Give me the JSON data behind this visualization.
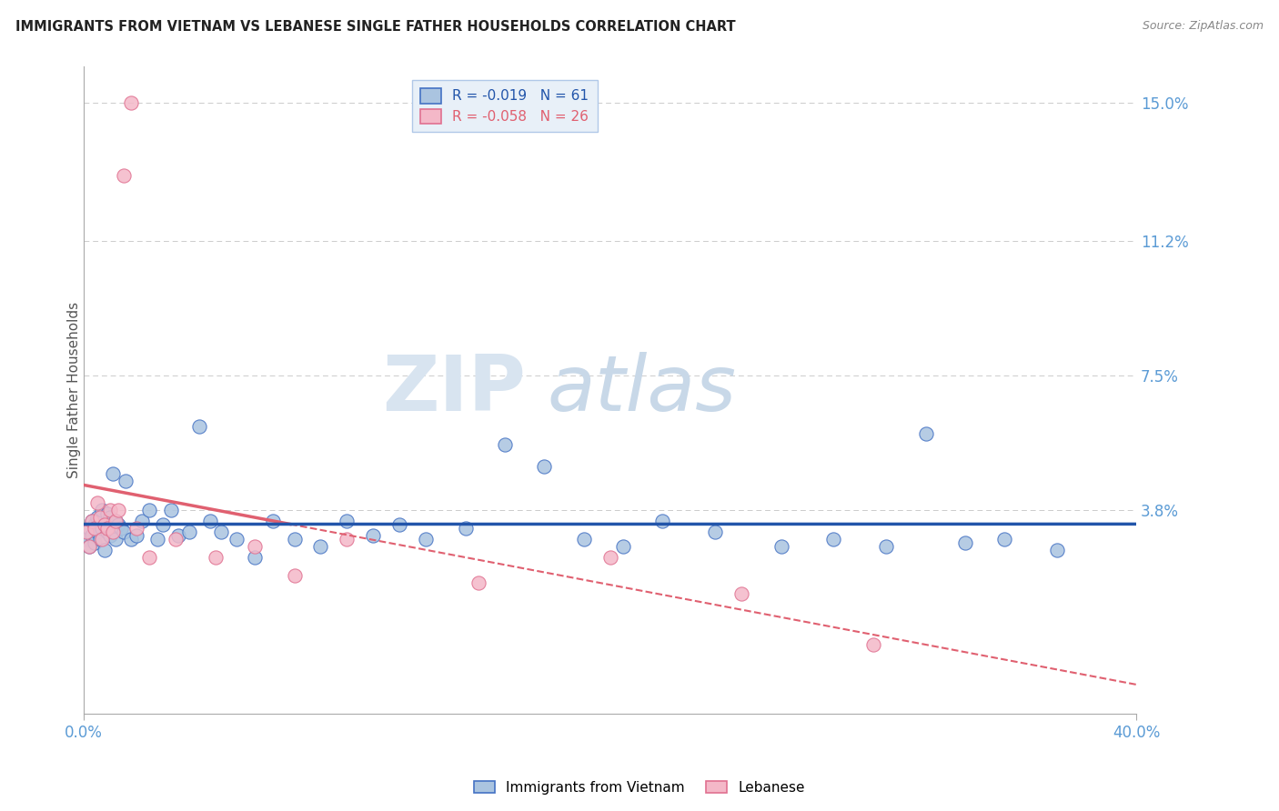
{
  "title": "IMMIGRANTS FROM VIETNAM VS LEBANESE SINGLE FATHER HOUSEHOLDS CORRELATION CHART",
  "source": "Source: ZipAtlas.com",
  "ylabel": "Single Father Households",
  "xlim": [
    0.0,
    0.4
  ],
  "ylim": [
    -0.018,
    0.16
  ],
  "ytick_vals": [
    0.038,
    0.075,
    0.112,
    0.15
  ],
  "ytick_labels": [
    "3.8%",
    "7.5%",
    "11.2%",
    "15.0%"
  ],
  "xtick_vals": [
    0.0,
    0.4
  ],
  "xtick_labels": [
    "0.0%",
    "40.0%"
  ],
  "background_color": "#ffffff",
  "grid_color": "#cccccc",
  "tick_color": "#5b9bd5",
  "series": [
    {
      "name": "Immigrants from Vietnam",
      "color": "#aac4e0",
      "edge_color": "#4472c4",
      "trend_color": "#2255aa",
      "trend_solid": true,
      "R": -0.019,
      "N": 61,
      "x": [
        0.001,
        0.002,
        0.002,
        0.003,
        0.003,
        0.004,
        0.004,
        0.005,
        0.005,
        0.006,
        0.006,
        0.007,
        0.007,
        0.008,
        0.008,
        0.009,
        0.009,
        0.01,
        0.01,
        0.011,
        0.012,
        0.012,
        0.013,
        0.014,
        0.015,
        0.016,
        0.018,
        0.02,
        0.022,
        0.025,
        0.028,
        0.03,
        0.033,
        0.036,
        0.04,
        0.044,
        0.048,
        0.052,
        0.058,
        0.065,
        0.072,
        0.08,
        0.09,
        0.1,
        0.11,
        0.12,
        0.13,
        0.145,
        0.16,
        0.175,
        0.19,
        0.205,
        0.22,
        0.24,
        0.265,
        0.285,
        0.305,
        0.32,
        0.335,
        0.35,
        0.37
      ],
      "y": [
        0.03,
        0.028,
        0.033,
        0.031,
        0.035,
        0.029,
        0.034,
        0.032,
        0.036,
        0.03,
        0.035,
        0.033,
        0.038,
        0.027,
        0.034,
        0.032,
        0.037,
        0.031,
        0.036,
        0.048,
        0.035,
        0.03,
        0.034,
        0.033,
        0.032,
        0.046,
        0.03,
        0.031,
        0.035,
        0.038,
        0.03,
        0.034,
        0.038,
        0.031,
        0.032,
        0.061,
        0.035,
        0.032,
        0.03,
        0.025,
        0.035,
        0.03,
        0.028,
        0.035,
        0.031,
        0.034,
        0.03,
        0.033,
        0.056,
        0.05,
        0.03,
        0.028,
        0.035,
        0.032,
        0.028,
        0.03,
        0.028,
        0.059,
        0.029,
        0.03,
        0.027
      ]
    },
    {
      "name": "Lebanese",
      "color": "#f4b8c8",
      "edge_color": "#e07090",
      "trend_color": "#e06070",
      "trend_solid": true,
      "R": -0.058,
      "N": 26,
      "x": [
        0.001,
        0.002,
        0.003,
        0.004,
        0.005,
        0.006,
        0.007,
        0.008,
        0.009,
        0.01,
        0.011,
        0.012,
        0.013,
        0.015,
        0.018,
        0.02,
        0.025,
        0.035,
        0.05,
        0.065,
        0.08,
        0.1,
        0.15,
        0.2,
        0.25,
        0.3
      ],
      "y": [
        0.032,
        0.028,
        0.035,
        0.033,
        0.04,
        0.036,
        0.03,
        0.034,
        0.033,
        0.038,
        0.032,
        0.035,
        0.038,
        0.13,
        0.15,
        0.033,
        0.025,
        0.03,
        0.025,
        0.028,
        0.02,
        0.03,
        0.018,
        0.025,
        0.015,
        0.001
      ]
    }
  ],
  "legend_box_color": "#e8f0f8",
  "legend_border_color": "#b0c8e8",
  "watermark_zip_color": "#d8e4f0",
  "watermark_atlas_color": "#c8d8e8"
}
